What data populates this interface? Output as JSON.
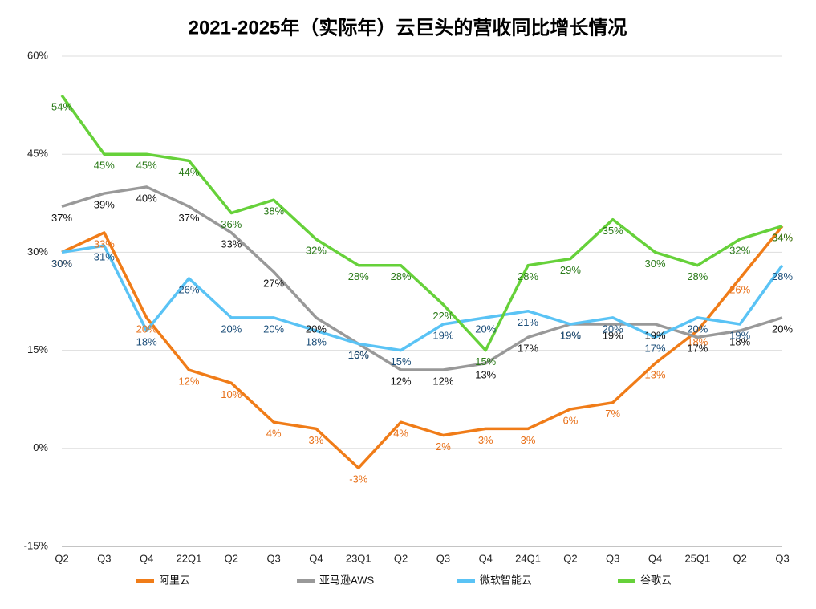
{
  "chart_data": {
    "type": "line",
    "title": "2021-2025年（实际年）云巨头的营收同比增长情况",
    "categories": [
      "Q2",
      "Q3",
      "Q4",
      "22Q1",
      "Q2",
      "Q3",
      "Q4",
      "23Q1",
      "Q2",
      "Q3",
      "Q4",
      "24Q1",
      "Q2",
      "Q3",
      "Q4",
      "25Q1",
      "Q2",
      "Q3"
    ],
    "ylim": [
      -15,
      60
    ],
    "yticks": [
      {
        "value": -15,
        "label": "-15%"
      },
      {
        "value": 0,
        "label": "0%"
      },
      {
        "value": 15,
        "label": "15%"
      },
      {
        "value": 30,
        "label": "30%"
      },
      {
        "value": 45,
        "label": "45%"
      },
      {
        "value": 60,
        "label": "60%"
      }
    ],
    "grid": true,
    "legend": "bottom",
    "series": [
      {
        "name": "阿里云",
        "color": "#f07c18",
        "label_color": "#e8711a",
        "values": [
          30,
          33,
          20,
          12,
          10,
          4,
          3,
          -3,
          4,
          2,
          3,
          3,
          6,
          7,
          13,
          18,
          26,
          34
        ],
        "value_labels": [
          "30%",
          "33%",
          "20%",
          "12%",
          "10%",
          "4%",
          "3%",
          "-3%",
          "4%",
          "2%",
          "3%",
          "3%",
          "6%",
          "7%",
          "13%",
          "18%",
          "26%",
          "34%"
        ]
      },
      {
        "name": "亚马逊AWS",
        "color": "#999999",
        "label_color": "#111111",
        "values": [
          37,
          39,
          40,
          37,
          33,
          27,
          20,
          16,
          12,
          12,
          13,
          17,
          19,
          19,
          19,
          17,
          18,
          20
        ],
        "value_labels": [
          "37%",
          "39%",
          "40%",
          "37%",
          "33%",
          "27%",
          "20%",
          "16%",
          "12%",
          "12%",
          "13%",
          "17%",
          "19%",
          "19%",
          "19%",
          "17%",
          "18%",
          "20%"
        ]
      },
      {
        "name": "微软智能云",
        "color": "#5ac3f5",
        "label_color": "#1d4f7a",
        "values": [
          30,
          31,
          18,
          26,
          20,
          20,
          18,
          16,
          15,
          19,
          20,
          21,
          19,
          20,
          17,
          20,
          19,
          28
        ],
        "value_labels": [
          "30%",
          "31%",
          "18%",
          "26%",
          "20%",
          "20%",
          "18%",
          "16%",
          "15%",
          "19%",
          "20%",
          "21%",
          "19%",
          "20%",
          "17%",
          "20%",
          "19%",
          "28%"
        ]
      },
      {
        "name": "谷歌云",
        "color": "#66d13a",
        "label_color": "#2a7a18",
        "values": [
          54,
          45,
          45,
          44,
          36,
          38,
          32,
          28,
          28,
          22,
          15,
          28,
          29,
          35,
          30,
          28,
          32,
          34
        ],
        "value_labels": [
          "54%",
          "45%",
          "45%",
          "44%",
          "36%",
          "38%",
          "32%",
          "28%",
          "28%",
          "22%",
          "15%",
          "28%",
          "29%",
          "35%",
          "30%",
          "28%",
          "32%",
          "34%"
        ]
      }
    ]
  }
}
